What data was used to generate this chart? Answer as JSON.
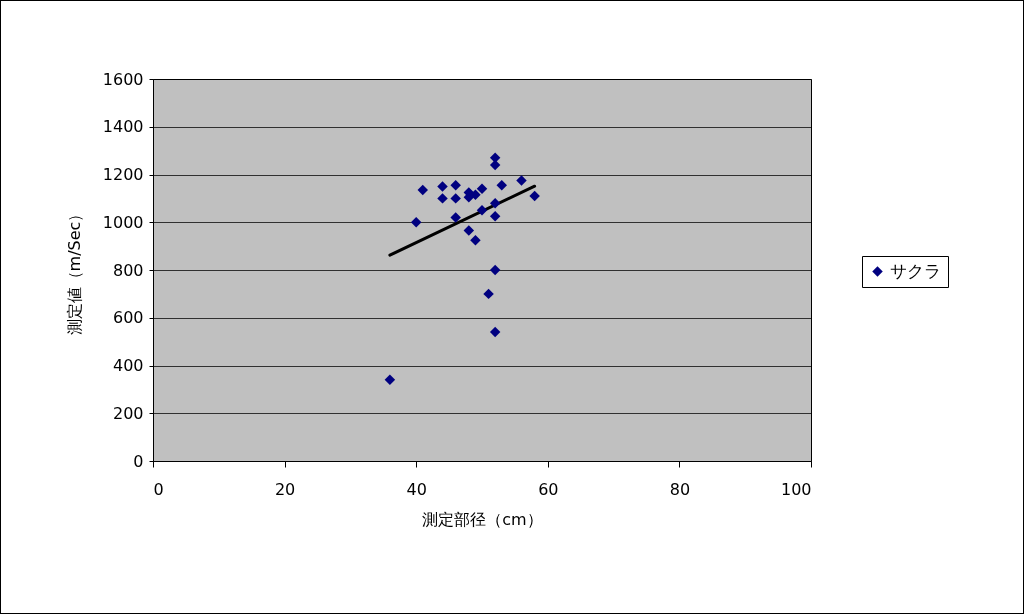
{
  "chart_data": {
    "type": "scatter",
    "xlabel": "測定部径（cm）",
    "ylabel": "測定値（m/Sec）",
    "xlim": [
      0,
      100
    ],
    "xticks": [
      0,
      20,
      40,
      60,
      80,
      100
    ],
    "ylim": [
      0,
      1600
    ],
    "yticks": [
      0,
      200,
      400,
      600,
      800,
      1000,
      1200,
      1400,
      1600
    ],
    "grid": "y",
    "legend": "right",
    "series": [
      {
        "name": "サクラ",
        "color": "#000080",
        "marker": "diamond",
        "x": [
          36,
          40,
          41,
          44,
          44,
          46,
          46,
          46,
          48,
          48,
          48,
          49,
          49,
          50,
          50,
          51,
          52,
          52,
          52,
          52,
          52,
          52,
          53,
          56,
          58
        ],
        "values": [
          340,
          1000,
          1135,
          1150,
          1100,
          1155,
          1100,
          1020,
          1125,
          1105,
          965,
          1115,
          925,
          1050,
          1140,
          700,
          1270,
          1240,
          1080,
          1025,
          800,
          540,
          1155,
          1175,
          1110
        ]
      },
      {
        "type": "line",
        "color": "#000000",
        "marker": "none",
        "x": [
          36,
          58
        ],
        "values": [
          862,
          1151
        ]
      }
    ]
  }
}
